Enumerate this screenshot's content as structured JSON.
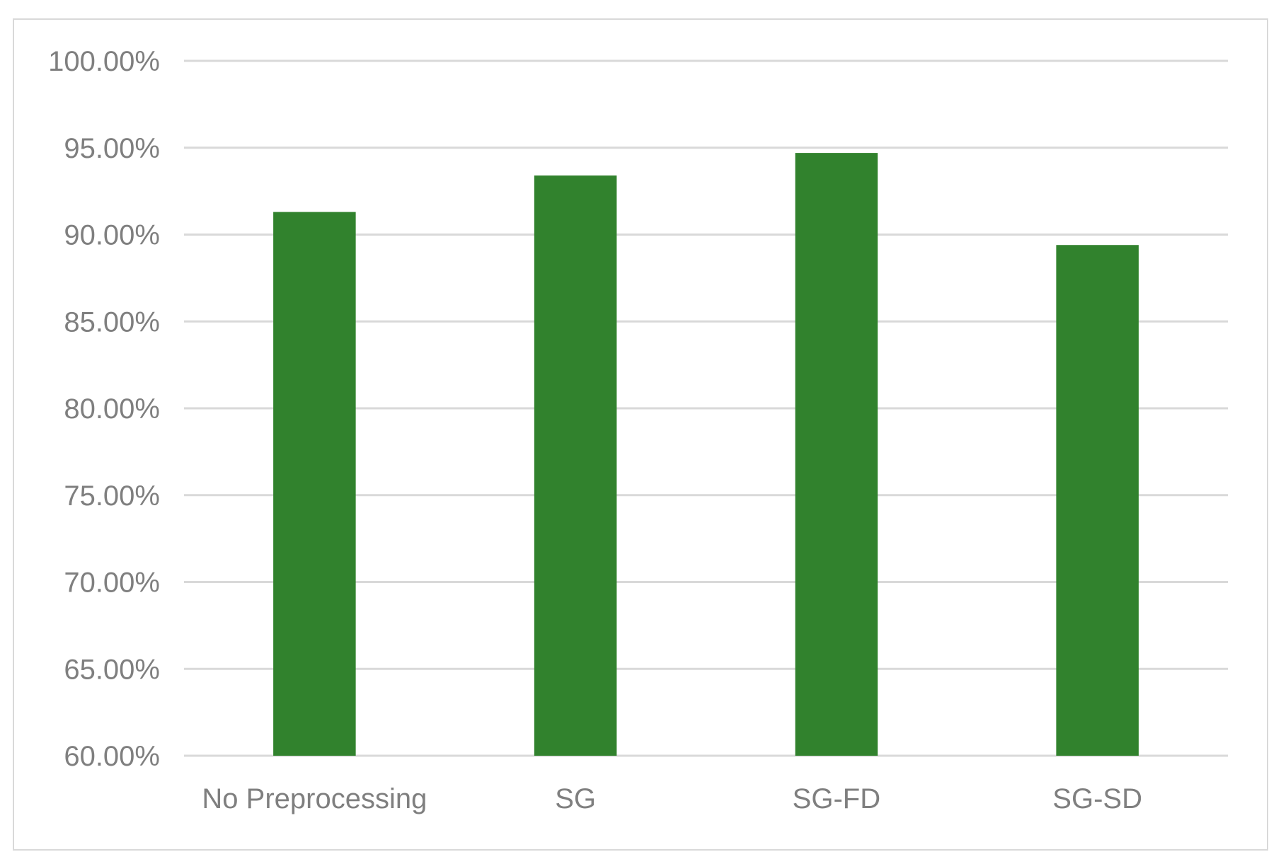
{
  "chart_data": {
    "type": "bar",
    "title": "",
    "xlabel": "",
    "ylabel": "",
    "categories": [
      "No Preprocessing",
      "SG",
      "SG-FD",
      "SG-SD"
    ],
    "values": [
      91.3,
      93.4,
      94.7,
      89.4
    ],
    "ylim": [
      60,
      100
    ],
    "y_tick_labels": [
      "60.00%",
      "65.00%",
      "70.00%",
      "75.00%",
      "80.00%",
      "85.00%",
      "90.00%",
      "95.00%",
      "100.00%"
    ],
    "y_ticks": [
      60,
      65,
      70,
      75,
      80,
      85,
      90,
      95,
      100
    ],
    "grid": true,
    "legend": "none",
    "bar_color": "#31822d",
    "grid_color": "#d9d9d9",
    "label_color": "#7f7f7f"
  }
}
